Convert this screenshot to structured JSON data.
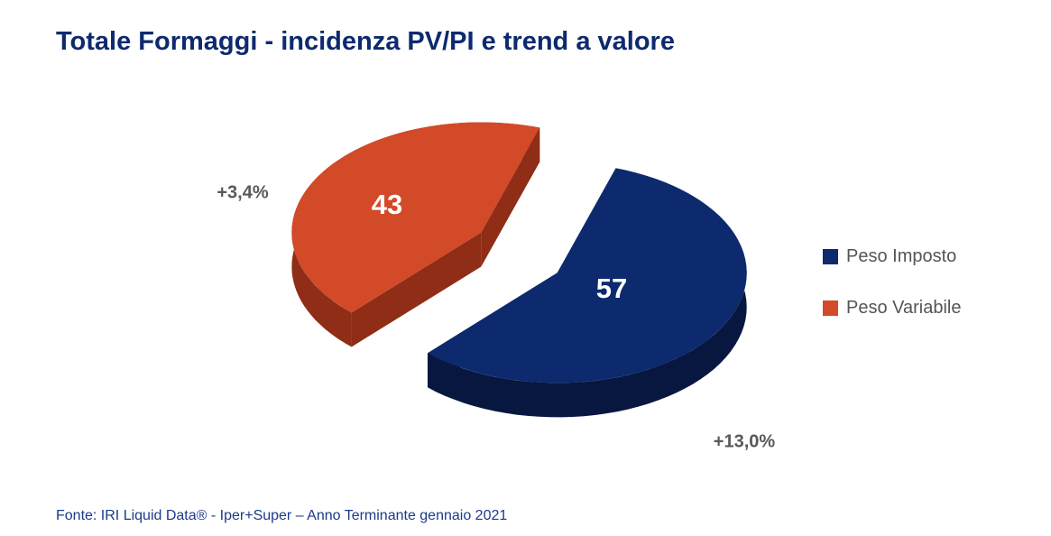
{
  "title": "Totale Formaggi - incidenza PV/PI e trend a valore",
  "source": "Fonte: IRI Liquid Data® - Iper+Super – Anno Terminante gennaio 2021",
  "chart_data": {
    "type": "pie",
    "slices": [
      {
        "name": "Peso Imposto",
        "value": 57,
        "value_label": "57",
        "trend": "+13,0%",
        "color": "#0d2a6e",
        "side_color": "#071740"
      },
      {
        "name": "Peso Variabile",
        "value": 43,
        "value_label": "43",
        "trend": "+3,4%",
        "color": "#d24a28",
        "side_color": "#8f2d16"
      }
    ],
    "legend_position": "right",
    "style": "3d-exploded"
  }
}
